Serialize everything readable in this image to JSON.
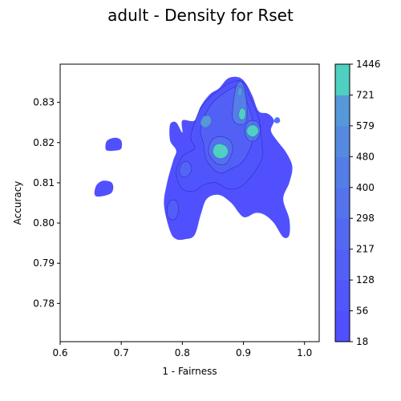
{
  "chart_data": {
    "type": "heatmap",
    "subtype": "filled-density-contour",
    "title": "adult - Density for Rset",
    "xlabel": "1 - Fairness",
    "ylabel": "Accuracy",
    "xlim": [
      0.6,
      1.024
    ],
    "ylim": [
      0.7705,
      0.8395
    ],
    "x_ticks": [
      0.6,
      0.7,
      0.8,
      0.9,
      1.0
    ],
    "x_tick_labels": [
      "0.6",
      "0.7",
      "0.8",
      "0.9",
      "1.0"
    ],
    "y_ticks": [
      0.78,
      0.79,
      0.8,
      0.81,
      0.82,
      0.83
    ],
    "y_tick_labels": [
      "0.78",
      "0.79",
      "0.80",
      "0.81",
      "0.82",
      "0.83"
    ],
    "grid": false,
    "colorbar": {
      "levels": [
        18,
        56,
        128,
        217,
        298,
        400,
        480,
        579,
        721,
        1446
      ],
      "labels": [
        "18",
        "56",
        "128",
        "217",
        "298",
        "400",
        "480",
        "579",
        "721",
        "1446"
      ],
      "colors": [
        "#5050ff",
        "#5157fb",
        "#5260f6",
        "#5369f1",
        "#5473ec",
        "#557de6",
        "#568ae0",
        "#5798d9",
        "#4fd0c0"
      ]
    },
    "regions": [
      {
        "name": "main-mass",
        "points": [
          [
            0.8,
            0.8225
          ],
          [
            0.8,
            0.8255
          ],
          [
            0.82,
            0.8255
          ],
          [
            0.83,
            0.829
          ],
          [
            0.845,
            0.832
          ],
          [
            0.86,
            0.8335
          ],
          [
            0.875,
            0.836
          ],
          [
            0.893,
            0.8362
          ],
          [
            0.905,
            0.8345
          ],
          [
            0.915,
            0.8315
          ],
          [
            0.925,
            0.8278
          ],
          [
            0.94,
            0.8272
          ],
          [
            0.95,
            0.8255
          ],
          [
            0.945,
            0.823
          ],
          [
            0.955,
            0.8205
          ],
          [
            0.97,
            0.8175
          ],
          [
            0.98,
            0.814
          ],
          [
            0.975,
            0.81
          ],
          [
            0.965,
            0.806
          ],
          [
            0.975,
            0.801
          ],
          [
            0.975,
            0.797
          ],
          [
            0.965,
            0.7965
          ],
          [
            0.95,
            0.8
          ],
          [
            0.935,
            0.802
          ],
          [
            0.92,
            0.8025
          ],
          [
            0.9,
            0.8015
          ],
          [
            0.88,
            0.805
          ],
          [
            0.86,
            0.807
          ],
          [
            0.84,
            0.806
          ],
          [
            0.83,
            0.802
          ],
          [
            0.82,
            0.797
          ],
          [
            0.805,
            0.796
          ],
          [
            0.79,
            0.796
          ],
          [
            0.78,
            0.798
          ],
          [
            0.77,
            0.8045
          ],
          [
            0.775,
            0.81
          ],
          [
            0.785,
            0.8155
          ],
          [
            0.79,
            0.818
          ],
          [
            0.78,
            0.8205
          ],
          [
            0.78,
            0.8245
          ],
          [
            0.79,
            0.825
          ]
        ]
      },
      {
        "name": "blob-upper-left",
        "points": [
          [
            0.674,
            0.8188
          ],
          [
            0.677,
            0.8205
          ],
          [
            0.69,
            0.8212
          ],
          [
            0.7,
            0.8205
          ],
          [
            0.7,
            0.8185
          ],
          [
            0.69,
            0.818
          ],
          [
            0.677,
            0.818
          ]
        ]
      },
      {
        "name": "blob-left",
        "points": [
          [
            0.656,
            0.8075
          ],
          [
            0.66,
            0.8095
          ],
          [
            0.67,
            0.8105
          ],
          [
            0.683,
            0.8102
          ],
          [
            0.687,
            0.809
          ],
          [
            0.684,
            0.8075
          ],
          [
            0.673,
            0.8068
          ],
          [
            0.66,
            0.8066
          ]
        ]
      },
      {
        "name": "blob-far-right",
        "points": [
          [
            0.95,
            0.8253
          ],
          [
            0.953,
            0.8262
          ],
          [
            0.958,
            0.8262
          ],
          [
            0.96,
            0.8253
          ],
          [
            0.955,
            0.8248
          ]
        ]
      },
      {
        "name": "peak-main",
        "points": [
          [
            0.85,
            0.8175
          ],
          [
            0.853,
            0.8192
          ],
          [
            0.862,
            0.8197
          ],
          [
            0.872,
            0.819
          ],
          [
            0.875,
            0.8175
          ],
          [
            0.868,
            0.8162
          ],
          [
            0.857,
            0.8162
          ]
        ]
      },
      {
        "name": "peak-upper-left",
        "points": [
          [
            0.83,
            0.825
          ],
          [
            0.835,
            0.8265
          ],
          [
            0.845,
            0.8265
          ],
          [
            0.847,
            0.825
          ],
          [
            0.84,
            0.8238
          ],
          [
            0.833,
            0.824
          ]
        ]
      },
      {
        "name": "peak-right",
        "points": [
          [
            0.905,
            0.8228
          ],
          [
            0.91,
            0.8242
          ],
          [
            0.92,
            0.8242
          ],
          [
            0.925,
            0.8228
          ],
          [
            0.918,
            0.8215
          ],
          [
            0.91,
            0.8217
          ]
        ]
      },
      {
        "name": "peak-top",
        "points": [
          [
            0.89,
            0.8322
          ],
          [
            0.892,
            0.8335
          ],
          [
            0.897,
            0.8335
          ],
          [
            0.898,
            0.8322
          ],
          [
            0.894,
            0.8315
          ]
        ]
      },
      {
        "name": "peak-mid",
        "points": [
          [
            0.892,
            0.827
          ],
          [
            0.896,
            0.8285
          ],
          [
            0.903,
            0.828
          ],
          [
            0.902,
            0.826
          ],
          [
            0.895,
            0.8258
          ]
        ]
      }
    ],
    "contours": [
      {
        "name": "contour-outer",
        "points": [
          [
            0.815,
            0.8225
          ],
          [
            0.83,
            0.8285
          ],
          [
            0.855,
            0.8325
          ],
          [
            0.88,
            0.835
          ],
          [
            0.9,
            0.835
          ],
          [
            0.91,
            0.8315
          ],
          [
            0.925,
            0.826
          ],
          [
            0.93,
            0.82
          ],
          [
            0.93,
            0.816
          ],
          [
            0.915,
            0.812
          ],
          [
            0.895,
            0.809
          ],
          [
            0.875,
            0.8085
          ],
          [
            0.855,
            0.81
          ],
          [
            0.835,
            0.8095
          ],
          [
            0.82,
            0.808
          ],
          [
            0.8,
            0.8085
          ],
          [
            0.79,
            0.8125
          ],
          [
            0.8,
            0.8165
          ],
          [
            0.82,
            0.8185
          ],
          [
            0.815,
            0.8205
          ]
        ]
      },
      {
        "name": "contour-mid",
        "points": [
          [
            0.83,
            0.8235
          ],
          [
            0.845,
            0.829
          ],
          [
            0.87,
            0.8325
          ],
          [
            0.895,
            0.834
          ],
          [
            0.905,
            0.8305
          ],
          [
            0.915,
            0.8255
          ],
          [
            0.915,
            0.8205
          ],
          [
            0.9,
            0.8155
          ],
          [
            0.88,
            0.8135
          ],
          [
            0.86,
            0.8125
          ],
          [
            0.84,
            0.8155
          ],
          [
            0.835,
            0.8195
          ]
        ]
      },
      {
        "name": "contour-inner",
        "points": [
          [
            0.843,
            0.8175
          ],
          [
            0.848,
            0.8205
          ],
          [
            0.862,
            0.8215
          ],
          [
            0.878,
            0.8205
          ],
          [
            0.882,
            0.818
          ],
          [
            0.872,
            0.8148
          ],
          [
            0.856,
            0.8148
          ]
        ]
      },
      {
        "name": "contour-left-ring",
        "points": [
          [
            0.795,
            0.8132
          ],
          [
            0.8,
            0.815
          ],
          [
            0.81,
            0.8152
          ],
          [
            0.815,
            0.8132
          ],
          [
            0.807,
            0.8115
          ],
          [
            0.798,
            0.8117
          ]
        ]
      },
      {
        "name": "contour-low-ring",
        "points": [
          [
            0.775,
            0.8035
          ],
          [
            0.78,
            0.8055
          ],
          [
            0.79,
            0.8055
          ],
          [
            0.794,
            0.8032
          ],
          [
            0.788,
            0.801
          ],
          [
            0.778,
            0.8012
          ]
        ]
      },
      {
        "name": "contour-right-ring",
        "points": [
          [
            0.902,
            0.8228
          ],
          [
            0.908,
            0.8252
          ],
          [
            0.922,
            0.8252
          ],
          [
            0.928,
            0.8228
          ],
          [
            0.92,
            0.8205
          ],
          [
            0.908,
            0.8207
          ]
        ]
      },
      {
        "name": "contour-top-ring",
        "points": [
          [
            0.882,
            0.8275
          ],
          [
            0.888,
            0.834
          ],
          [
            0.898,
            0.835
          ],
          [
            0.905,
            0.8305
          ],
          [
            0.905,
            0.8255
          ],
          [
            0.895,
            0.8245
          ],
          [
            0.885,
            0.8252
          ]
        ]
      }
    ]
  }
}
